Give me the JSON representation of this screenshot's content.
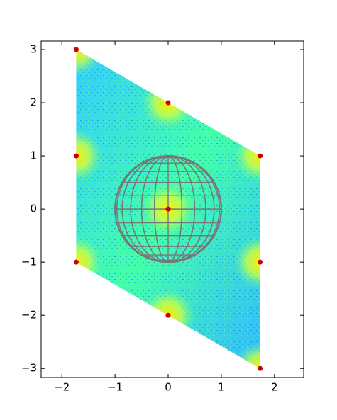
{
  "chart_data": {
    "type": "heatmap",
    "xlim": [
      -2.39,
      2.55
    ],
    "ylim": [
      -3.17,
      3.16
    ],
    "xticks": [
      {
        "value": -2,
        "label": "−2"
      },
      {
        "value": -1,
        "label": "−1"
      },
      0,
      1,
      2
    ],
    "yticks": [
      {
        "value": -3,
        "label": "−3"
      },
      {
        "value": -2,
        "label": "−2"
      },
      {
        "value": -1,
        "label": "−1"
      },
      0,
      1,
      2,
      3
    ],
    "region": {
      "x": [
        -1.73,
        1.73,
        1.73,
        -1.73
      ],
      "y": [
        3,
        1,
        -3,
        -1
      ]
    },
    "sphere": {
      "center": [
        0,
        0
      ],
      "radius": 1,
      "color": "#777777"
    },
    "series": [
      {
        "color": "#cc0000",
        "x": [
          -1.73,
          0,
          1.73,
          -1.73,
          0,
          1.73,
          -1.73,
          0,
          1.73
        ],
        "y": [
          3,
          2,
          1,
          1,
          0,
          -1,
          -1,
          -2,
          -3
        ]
      }
    ]
  }
}
